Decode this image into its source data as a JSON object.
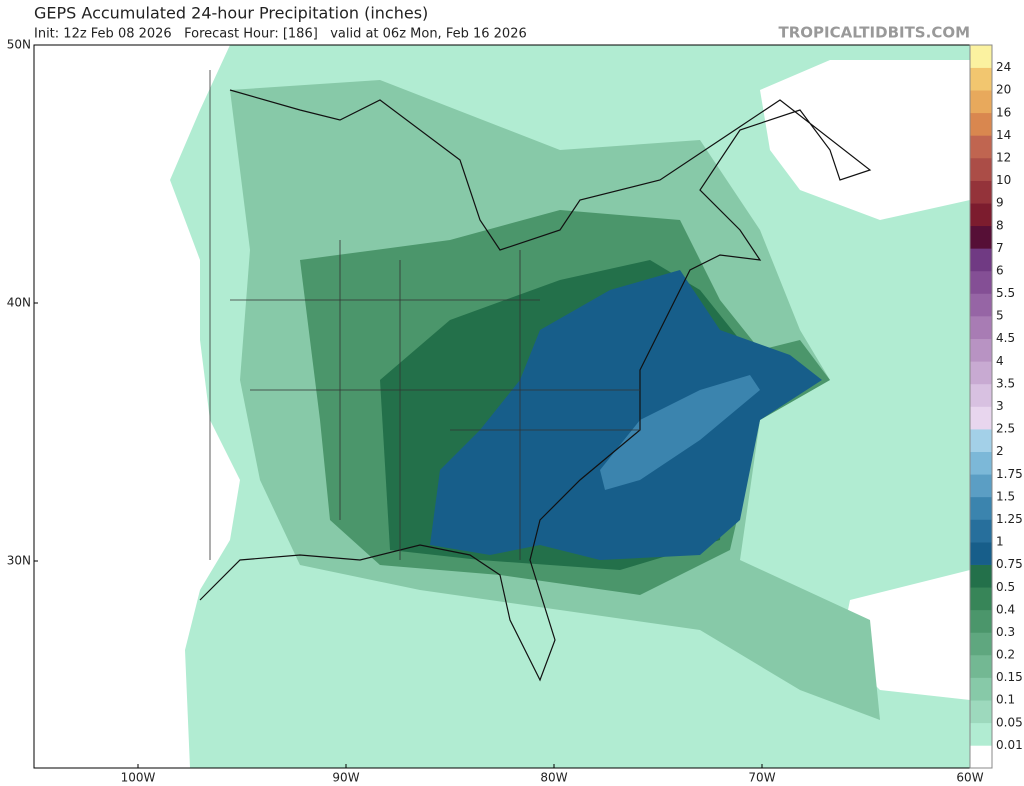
{
  "header": {
    "title": "GEPS Accumulated 24-hour Precipitation (inches)",
    "subtitle": "Init: 12z Feb 08 2026   Forecast Hour: [186]   valid at 06z Mon, Feb 16 2026",
    "watermark": "TROPICALTIDBITS.COM"
  },
  "map": {
    "lat_labels": [
      "50N",
      "40N",
      "30N"
    ],
    "lon_labels": [
      "100W",
      "90W",
      "80W",
      "70W",
      "60W"
    ]
  },
  "colorbar": {
    "levels": [
      0.01,
      0.05,
      0.1,
      0.15,
      0.2,
      0.3,
      0.4,
      0.5,
      0.75,
      1,
      1.25,
      1.5,
      1.75,
      2,
      2.5,
      3,
      3.5,
      4,
      4.5,
      5,
      5.5,
      6,
      7,
      8,
      9,
      10,
      12,
      14,
      16,
      20,
      24
    ],
    "colors": [
      "#ffffff",
      "#b1ecd2",
      "#9dd9bd",
      "#87c9a8",
      "#73b893",
      "#5fa77f",
      "#4b966b",
      "#378558",
      "#23704a",
      "#175e8a",
      "#276f9c",
      "#3b84ae",
      "#5b9ec4",
      "#7cb8d8",
      "#a3d0e8",
      "#e8d6ee",
      "#d8c1e1",
      "#c8aad2",
      "#b893c3",
      "#a87cb4",
      "#9665a5",
      "#844f95",
      "#703a83",
      "#560f36",
      "#7c1c2e",
      "#94333a",
      "#ab4d47",
      "#c06550",
      "#d9874f",
      "#e8a95c",
      "#f2c66f",
      "#fbf2a0"
    ]
  }
}
